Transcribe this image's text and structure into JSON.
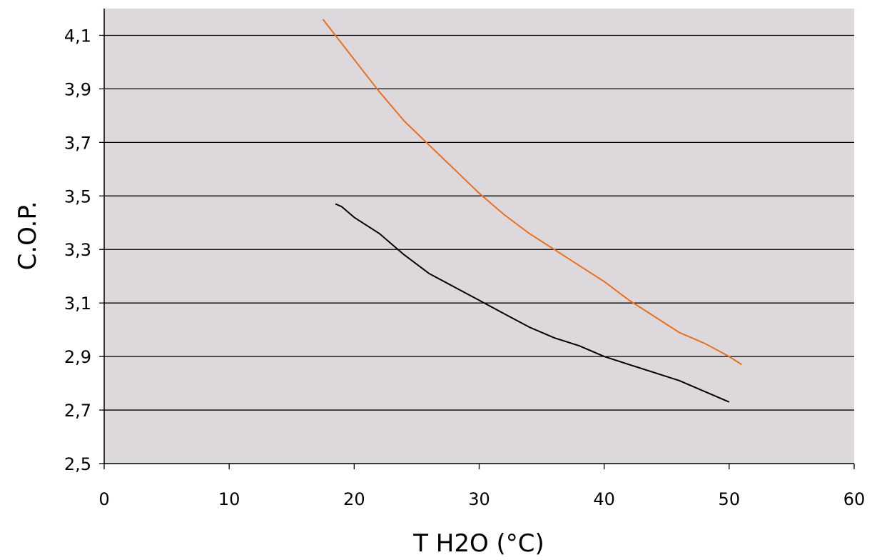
{
  "chart_data": {
    "type": "line",
    "title": "",
    "xlabel": "T H2O (°C)",
    "ylabel": "C.O.P.",
    "xlim": [
      0,
      60
    ],
    "ylim": [
      2.5,
      4.2
    ],
    "x_ticks": [
      0,
      10,
      20,
      30,
      40,
      50,
      60
    ],
    "x_tick_labels": [
      "0",
      "10",
      "20",
      "30",
      "40",
      "50",
      "60"
    ],
    "y_ticks": [
      2.5,
      2.7,
      2.9,
      3.1,
      3.3,
      3.5,
      3.7,
      3.9,
      4.1
    ],
    "y_tick_labels": [
      "2,5",
      "2,7",
      "2,9",
      "3,1",
      "3,3",
      "3,5",
      "3,7",
      "3,9",
      "4,1"
    ],
    "grid": "horizontal",
    "plot_background": "#ddd8dc",
    "series": [
      {
        "color": "#e8701e",
        "x": [
          17.5,
          18,
          19,
          20,
          22,
          24,
          26,
          28,
          30,
          32,
          34,
          36,
          38,
          40,
          42,
          44,
          46,
          48,
          50,
          51
        ],
        "y": [
          4.16,
          4.13,
          4.07,
          4.01,
          3.89,
          3.78,
          3.69,
          3.6,
          3.51,
          3.43,
          3.36,
          3.3,
          3.24,
          3.18,
          3.11,
          3.05,
          2.99,
          2.95,
          2.9,
          2.87
        ]
      },
      {
        "color": "#000000",
        "x": [
          18.5,
          19,
          20,
          22,
          24,
          26,
          28,
          30,
          32,
          34,
          36,
          38,
          40,
          42,
          44,
          46,
          48,
          50
        ],
        "y": [
          3.47,
          3.46,
          3.42,
          3.36,
          3.28,
          3.21,
          3.16,
          3.11,
          3.06,
          3.01,
          2.97,
          2.94,
          2.9,
          2.87,
          2.84,
          2.81,
          2.77,
          2.73
        ]
      }
    ]
  }
}
